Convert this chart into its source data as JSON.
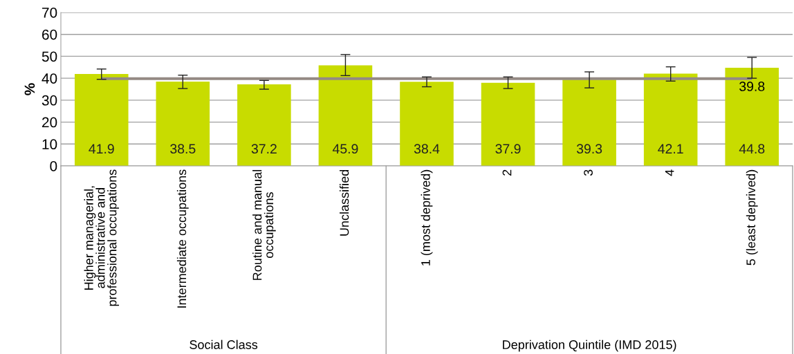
{
  "chart_data": {
    "type": "bar",
    "ylabel": "%",
    "categories": [
      "Higher managerial,\nadministrative and\nprofessional occupations",
      "Intermediate occupations",
      "Routine and manual\noccupations",
      "Unclassified",
      "1 (most deprived)",
      "2",
      "3",
      "4",
      "5 (least deprived)"
    ],
    "values": [
      41.9,
      38.5,
      37.2,
      45.9,
      38.4,
      37.9,
      39.3,
      42.1,
      44.8
    ],
    "color": "#c8dc00",
    "errors": [
      [
        39.5,
        44.2
      ],
      [
        35.3,
        41.4
      ],
      [
        35.0,
        39.0
      ],
      [
        41.2,
        50.8
      ],
      [
        36.1,
        40.6
      ],
      [
        35.3,
        40.6
      ],
      [
        35.6,
        42.9
      ],
      [
        38.7,
        45.2
      ],
      [
        40.0,
        49.5
      ]
    ],
    "data_labels": true,
    "ref_lines": [
      {
        "axis": "y",
        "value": 39.8,
        "label": "39.8",
        "color": "#948a84"
      }
    ],
    "ylim": [
      0,
      70
    ],
    "yticks": [
      0,
      10,
      20,
      30,
      40,
      50,
      60,
      70
    ],
    "grid": "y",
    "annotations": [
      "Social Class",
      "Deprivation Quintile (IMD 2015)"
    ]
  }
}
